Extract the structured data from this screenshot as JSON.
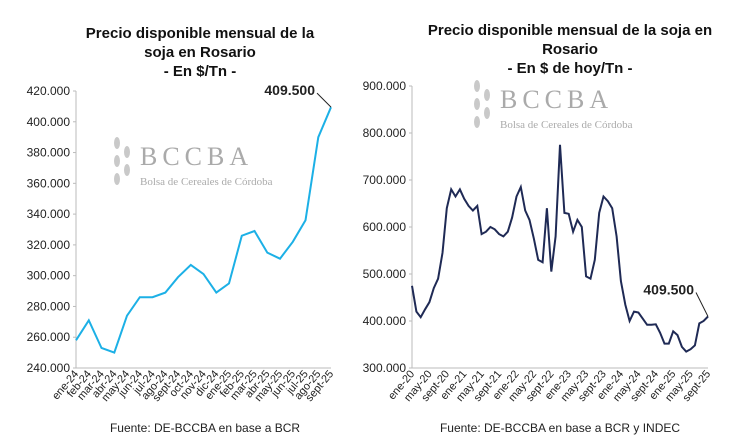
{
  "chart_data": [
    {
      "type": "line",
      "title": "Precio disponible mensual de la soja en Rosario",
      "subtitle": "- En $/Tn -",
      "source": "Fuente: DE-BCCBA en base a BCR",
      "watermark": {
        "name": "BCCBA",
        "subtitle": "Bolsa de Cereales de Córdoba"
      },
      "categories": [
        "ene-24",
        "feb-24",
        "mar-24",
        "abr-24",
        "may-24",
        "jun-24",
        "jul-24",
        "ago-24",
        "sept-24",
        "oct-24",
        "nov-24",
        "dic-24",
        "ene-25",
        "feb-25",
        "mar-25",
        "abr-25",
        "may-25",
        "jun-25",
        "jul-25",
        "ago-25",
        "sept-25"
      ],
      "series": [
        {
          "name": "Precio",
          "color": "#1cb0e6",
          "values": [
            258000,
            271000,
            253000,
            250000,
            274000,
            286000,
            286000,
            289000,
            299000,
            307000,
            301000,
            289000,
            295000,
            326000,
            329000,
            315000,
            311000,
            322000,
            336000,
            390000,
            409500
          ],
          "value_labels": [
            null,
            null,
            null,
            null,
            null,
            null,
            null,
            null,
            null,
            null,
            null,
            null,
            null,
            null,
            null,
            null,
            null,
            null,
            null,
            null,
            "409.500"
          ]
        }
      ],
      "ylim": [
        240000,
        420000
      ],
      "yticks": [
        {
          "value": 240000,
          "label": "240.000"
        },
        {
          "value": 260000,
          "label": "260.000"
        },
        {
          "value": 280000,
          "label": "280.000"
        },
        {
          "value": 300000,
          "label": "300.000"
        },
        {
          "value": 320000,
          "label": "320.000"
        },
        {
          "value": 340000,
          "label": "340.000"
        },
        {
          "value": 360000,
          "label": "360.000"
        },
        {
          "value": 380000,
          "label": "380.000"
        },
        {
          "value": 400000,
          "label": "400.000"
        },
        {
          "value": 420000,
          "label": "420.000"
        }
      ],
      "grid": false
    },
    {
      "type": "line",
      "title": "Precio disponible mensual de la soja en Rosario",
      "subtitle": "- En $ de hoy/Tn -",
      "source": "Fuente: DE-BCCBA en base a BCR y INDEC",
      "watermark": {
        "name": "BCCBA",
        "subtitle": "Bolsa de Cereales de Córdoba"
      },
      "categories": [
        "ene-20",
        null,
        null,
        null,
        "may-20",
        null,
        null,
        null,
        "sept-20",
        null,
        null,
        null,
        "ene-21",
        null,
        null,
        null,
        "may-21",
        null,
        null,
        null,
        "sept-21",
        null,
        null,
        null,
        "ene-22",
        null,
        null,
        null,
        "may-22",
        null,
        null,
        null,
        "sept-22",
        null,
        null,
        null,
        "ene-23",
        null,
        null,
        null,
        "may-23",
        null,
        null,
        null,
        "sept-23",
        null,
        null,
        null,
        "ene-24",
        null,
        null,
        null,
        "may-24",
        null,
        null,
        null,
        "sept-24",
        null,
        null,
        null,
        "ene-25",
        null,
        null,
        null,
        "may-25",
        null,
        null,
        null,
        "sept-25"
      ],
      "series": [
        {
          "name": "Precio",
          "color": "#1f2a55",
          "values": [
            475000,
            420000,
            408000,
            425000,
            440000,
            470000,
            490000,
            545000,
            640000,
            680000,
            665000,
            680000,
            660000,
            645000,
            635000,
            645000,
            585000,
            590000,
            600000,
            595000,
            585000,
            580000,
            590000,
            620000,
            665000,
            685000,
            635000,
            615000,
            575000,
            530000,
            525000,
            640000,
            505000,
            580000,
            775000,
            630000,
            628000,
            590000,
            615000,
            600000,
            495000,
            490000,
            530000,
            630000,
            665000,
            655000,
            640000,
            580000,
            485000,
            435000,
            400000,
            420000,
            418000,
            405000,
            392000,
            392000,
            393000,
            375000,
            352000,
            352000,
            378000,
            370000,
            345000,
            335000,
            340000,
            348000,
            395000,
            400000,
            409500
          ],
          "value_labels": [
            null,
            null,
            null,
            null,
            null,
            null,
            null,
            null,
            null,
            null,
            null,
            null,
            null,
            null,
            null,
            null,
            null,
            null,
            null,
            null,
            null,
            null,
            null,
            null,
            null,
            null,
            null,
            null,
            null,
            null,
            null,
            null,
            null,
            null,
            null,
            null,
            null,
            null,
            null,
            null,
            null,
            null,
            null,
            null,
            null,
            null,
            null,
            null,
            null,
            null,
            null,
            null,
            null,
            null,
            null,
            null,
            null,
            null,
            null,
            null,
            null,
            null,
            null,
            null,
            null,
            null,
            null,
            null,
            "409.500"
          ]
        }
      ],
      "ylim": [
        300000,
        900000
      ],
      "yticks": [
        {
          "value": 300000,
          "label": "300.000"
        },
        {
          "value": 400000,
          "label": "400.000"
        },
        {
          "value": 500000,
          "label": "500.000"
        },
        {
          "value": 600000,
          "label": "600.000"
        },
        {
          "value": 700000,
          "label": "700.000"
        },
        {
          "value": 800000,
          "label": "800.000"
        },
        {
          "value": 900000,
          "label": "900.000"
        }
      ],
      "grid": false
    }
  ]
}
